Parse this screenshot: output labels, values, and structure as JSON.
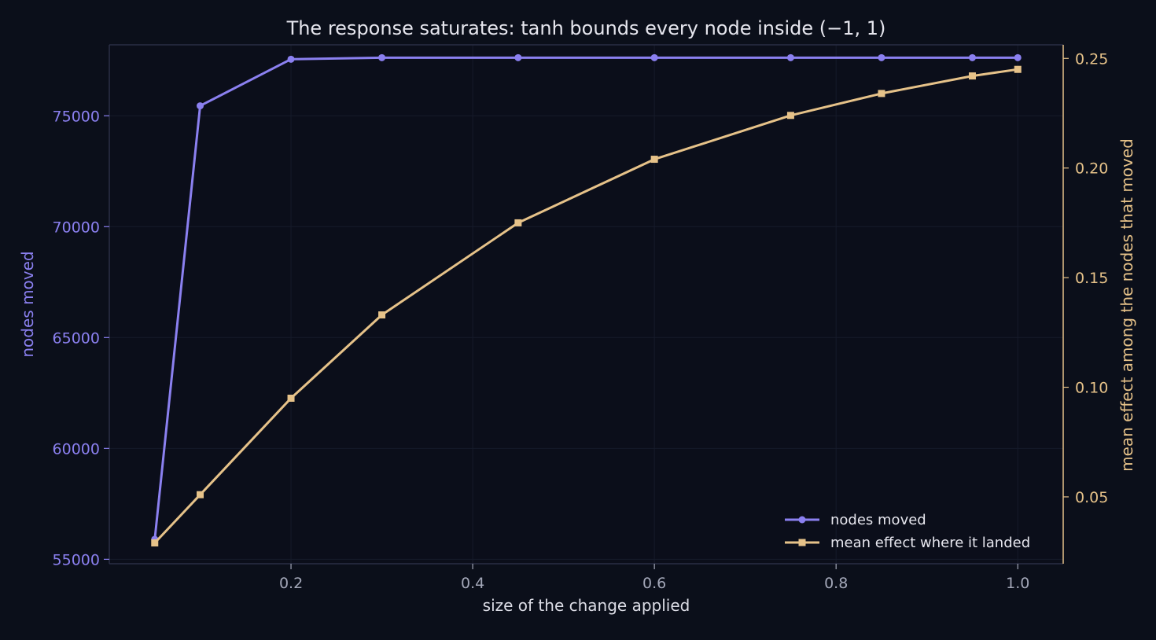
{
  "colors": {
    "background": "#0b0f1a",
    "plot_background": "#0b0e1a",
    "frame": "#2a2f45",
    "grid": "#161b2a",
    "title": "#e6e6ee",
    "x_axis_text": "#a3a7b8",
    "x_label": "#dcdde6",
    "left_axis": "#8b80f0",
    "right_axis": "#e6c289",
    "legend_text": "#e6e6ee"
  },
  "chart_data": {
    "type": "line",
    "title": "The response saturates: tanh bounds every node inside (−1, 1)",
    "xlabel": "size of the change applied",
    "ylabel_left": "nodes moved",
    "ylabel_right": "mean effect among the nodes that moved",
    "xlim": [
      0.0,
      1.05
    ],
    "ylim_left": [
      54800,
      78200
    ],
    "ylim_right": [
      0.0195,
      0.2562
    ],
    "x_ticks": [
      0.2,
      0.4,
      0.6,
      0.8,
      1.0
    ],
    "x_tick_labels": [
      "0.2",
      "0.4",
      "0.6",
      "0.8",
      "1.0"
    ],
    "y_left_ticks": [
      55000,
      60000,
      65000,
      70000,
      75000
    ],
    "y_left_tick_labels": [
      "55000",
      "60000",
      "65000",
      "70000",
      "75000"
    ],
    "y_right_ticks": [
      0.05,
      0.1,
      0.15,
      0.2,
      0.25
    ],
    "y_right_tick_labels": [
      "0.05",
      "0.10",
      "0.15",
      "0.20",
      "0.25"
    ],
    "grid": true,
    "legend_position": "lower-right",
    "series": [
      {
        "name": "nodes moved",
        "axis": "left",
        "marker": "circle",
        "color": "#8b80f0",
        "x": [
          0.05,
          0.1,
          0.2,
          0.3,
          0.45,
          0.6,
          0.75,
          0.85,
          0.95,
          1.0
        ],
        "values": [
          55900,
          75450,
          77550,
          77620,
          77620,
          77620,
          77620,
          77620,
          77620,
          77620
        ]
      },
      {
        "name": "mean effect where it landed",
        "axis": "right",
        "marker": "square",
        "color": "#e6c289",
        "x": [
          0.05,
          0.1,
          0.2,
          0.3,
          0.45,
          0.6,
          0.75,
          0.85,
          0.95,
          1.0
        ],
        "values": [
          0.029,
          0.051,
          0.095,
          0.133,
          0.175,
          0.204,
          0.224,
          0.234,
          0.242,
          0.245
        ]
      }
    ]
  }
}
